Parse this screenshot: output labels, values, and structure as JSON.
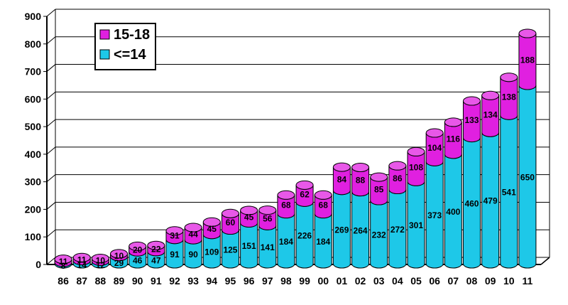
{
  "chart_data": {
    "type": "bar",
    "stacked": true,
    "three_d": true,
    "categories": [
      "86",
      "87",
      "88",
      "89",
      "90",
      "91",
      "92",
      "93",
      "94",
      "95",
      "96",
      "97",
      "98",
      "99",
      "00",
      "01",
      "02",
      "03",
      "04",
      "05",
      "06",
      "07",
      "08",
      "09",
      "10",
      "11"
    ],
    "series": [
      {
        "name": "<=14",
        "color": "#1ec8e8",
        "values": [
          8,
          14,
          12,
          29,
          46,
          47,
          91,
          90,
          109,
          125,
          151,
          141,
          184,
          226,
          184,
          269,
          264,
          232,
          272,
          301,
          373,
          400,
          460,
          479,
          541,
          650
        ]
      },
      {
        "name": "15-18",
        "color": "#e020e0",
        "values": [
          11,
          11,
          10,
          10,
          20,
          22,
          31,
          44,
          45,
          60,
          45,
          56,
          68,
          62,
          68,
          84,
          88,
          85,
          86,
          108,
          104,
          116,
          133,
          134,
          138,
          188
        ]
      }
    ],
    "data_labels": {
      "<=14": [
        "8",
        "14",
        "12",
        "29",
        "46",
        "47",
        "91",
        "90",
        "109",
        "125",
        "151",
        "141",
        "184",
        "226",
        "184",
        "269",
        "264",
        "232",
        "272",
        "301",
        "373",
        "400",
        "460",
        "479",
        "541",
        "650"
      ],
      "15-18": [
        "11",
        "11",
        "10",
        "10",
        "20",
        "22",
        "31",
        "44",
        "45",
        "60",
        "45",
        "56",
        "68",
        "62",
        "68",
        "84",
        "88",
        "85",
        "86",
        "108",
        "104",
        "116",
        "133",
        "134",
        "138",
        "188"
      ]
    },
    "yticks": [
      "0",
      "100",
      "200",
      "300",
      "400",
      "500",
      "600",
      "700",
      "800",
      "900"
    ],
    "ylim": [
      0,
      900
    ],
    "grid": true,
    "legend": {
      "position": "top-left",
      "entries": [
        "15-18",
        "<=14"
      ]
    }
  }
}
